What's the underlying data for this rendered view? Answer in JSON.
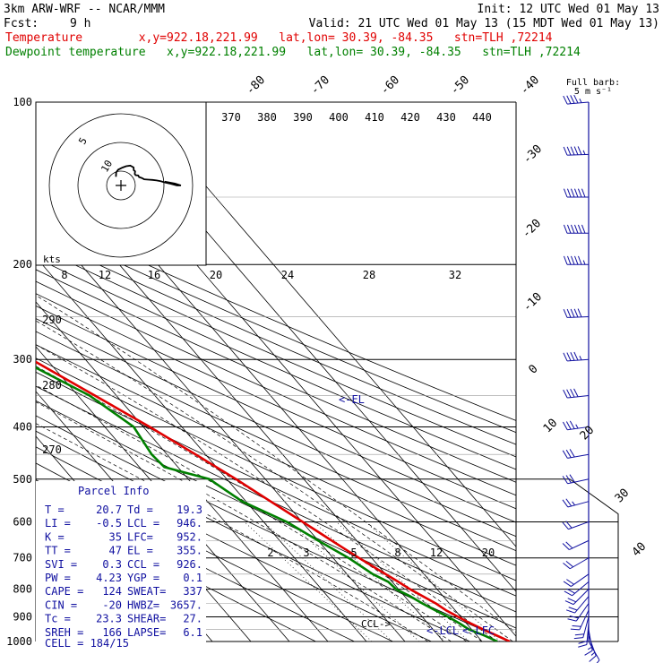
{
  "header": {
    "model": "3km ARW-WRF -- NCAR/MMM",
    "init": "Init: 12 UTC Wed 01 May 13",
    "fcst_label": "Fcst:",
    "fcst_hours": "9 h",
    "valid": "Valid: 21 UTC Wed 01 May 13 (15 MDT Wed 01 May 13)",
    "temp_line": "Temperature        x,y=922.18,221.99   lat,lon= 30.39, -84.35   stn=TLH ,72214",
    "dewp_line": "Dewpoint temperature   x,y=922.18,221.99   lat,lon= 30.39, -84.35   stn=TLH ,72214"
  },
  "colors": {
    "temperature": "#e00000",
    "dewpoint": "#008000",
    "panel_text": "#1010a0",
    "barbs": "#1010a0"
  },
  "barb_legend": {
    "line1": "Full barb:",
    "line2": "5 m s⁻¹"
  },
  "hodograph": {
    "units": "kts",
    "ring_labels": [
      "5",
      "10"
    ]
  },
  "annotations": {
    "el": "<-EL",
    "ccl": "CCL->",
    "lcl": "<-LCL",
    "lfc": "<-LFC"
  },
  "parcel_info": {
    "title": "Parcel Info",
    "rows": [
      [
        "T  =",
        "20.7",
        "Td =",
        "19.3"
      ],
      [
        "LI =",
        "-0.5",
        "LCL =",
        "946."
      ],
      [
        "K  =",
        "35",
        "LFC=",
        "952."
      ],
      [
        "TT =",
        "47",
        "EL =",
        "355."
      ],
      [
        "SVI =",
        "0.3",
        "CCL =",
        "926."
      ],
      [
        "PW =",
        "4.23",
        "YGP =",
        "0.1"
      ],
      [
        "CAPE =",
        "124",
        "SWEAT=",
        "337"
      ],
      [
        "CIN =",
        "-20",
        "HWBZ=",
        "3657."
      ],
      [
        "Tc =",
        "23.3",
        "SHEAR=",
        "27."
      ],
      [
        "SREH =",
        "166",
        "LAPSE=",
        "6.1"
      ]
    ],
    "cell": "CELL = 184/15"
  },
  "chart_data": {
    "type": "line",
    "diagram": "skew-T log-p",
    "ylabel": "",
    "xlabel": "",
    "pressure_ticks": [
      "100",
      "200",
      "300",
      "400",
      "500",
      "600",
      "700",
      "800",
      "900",
      "1000"
    ],
    "isotherm_labels_top": [
      "-80",
      "-70",
      "-60",
      "-50",
      "-40"
    ],
    "isotherm_labels_right": [
      "-30",
      "-20",
      "-10",
      "0",
      "10",
      "20",
      "30",
      "40"
    ],
    "theta_labels_top": [
      "370",
      "380",
      "390",
      "400",
      "410",
      "420",
      "430",
      "440"
    ],
    "theta_labels_left": [
      "290",
      "280",
      "270"
    ],
    "mixing_ratio_labels_mid": [
      "8",
      "12",
      "16",
      "20",
      "24",
      "28",
      "32"
    ],
    "mixing_ratio_labels_low": [
      "2",
      "3",
      "5",
      "8",
      "12",
      "20"
    ],
    "series": [
      {
        "name": "Temperature",
        "points": [
          [
            1000,
            27.2
          ],
          [
            975,
            25.2
          ],
          [
            950,
            23.0
          ],
          [
            925,
            21.0
          ],
          [
            900,
            19.3
          ],
          [
            875,
            17.6
          ],
          [
            850,
            16.5
          ],
          [
            825,
            14.8
          ],
          [
            800,
            13.0
          ],
          [
            775,
            11.6
          ],
          [
            750,
            10.0
          ],
          [
            700,
            6.7
          ],
          [
            650,
            3.5
          ],
          [
            600,
            0.1
          ],
          [
            550,
            -3.6
          ],
          [
            500,
            -7.6
          ],
          [
            450,
            -12.6
          ],
          [
            400,
            -18.4
          ],
          [
            350,
            -25.6
          ],
          [
            300,
            -34.0
          ],
          [
            250,
            -44.0
          ],
          [
            200,
            -55.0
          ],
          [
            175,
            -58.0
          ],
          [
            150,
            -61.5
          ],
          [
            125,
            -68.5
          ],
          [
            100,
            -77.0
          ]
        ]
      },
      {
        "name": "Dewpoint temperature",
        "points": [
          [
            1000,
            24.0
          ],
          [
            975,
            22.0
          ],
          [
            950,
            19.3
          ],
          [
            925,
            18.2
          ],
          [
            900,
            16.7
          ],
          [
            875,
            14.8
          ],
          [
            850,
            13.0
          ],
          [
            825,
            11.5
          ],
          [
            800,
            9.4
          ],
          [
            775,
            9.0
          ],
          [
            750,
            6.7
          ],
          [
            700,
            4.0
          ],
          [
            650,
            0.0
          ],
          [
            600,
            -4.0
          ],
          [
            550,
            -11.0
          ],
          [
            500,
            -14.5
          ],
          [
            475,
            -23.5
          ],
          [
            450,
            -24.0
          ],
          [
            400,
            -22.5
          ],
          [
            350,
            -27.0
          ],
          [
            300,
            -37.0
          ],
          [
            250,
            -49.0
          ],
          [
            200,
            -62.0
          ],
          [
            175,
            -67.0
          ],
          [
            150,
            -74.5
          ],
          [
            125,
            -82.5
          ],
          [
            100,
            -88.0
          ]
        ]
      }
    ],
    "wind_barbs_ms": [
      [
        1000,
        5,
        150
      ],
      [
        975,
        7,
        160
      ],
      [
        950,
        8,
        170
      ],
      [
        925,
        9,
        185
      ],
      [
        900,
        10,
        195
      ],
      [
        875,
        11,
        205
      ],
      [
        850,
        11,
        215
      ],
      [
        825,
        10,
        220
      ],
      [
        800,
        10,
        225
      ],
      [
        775,
        9,
        230
      ],
      [
        750,
        9,
        235
      ],
      [
        700,
        10,
        240
      ],
      [
        650,
        10,
        245
      ],
      [
        600,
        11,
        250
      ],
      [
        550,
        12,
        255
      ],
      [
        500,
        14,
        258
      ],
      [
        450,
        16,
        260
      ],
      [
        400,
        18,
        262
      ],
      [
        350,
        20,
        264
      ],
      [
        300,
        22,
        266
      ],
      [
        250,
        25,
        268
      ],
      [
        200,
        28,
        270
      ],
      [
        175,
        29,
        270
      ],
      [
        150,
        30,
        270
      ],
      [
        125,
        27,
        268
      ],
      [
        100,
        22,
        265
      ]
    ]
  }
}
